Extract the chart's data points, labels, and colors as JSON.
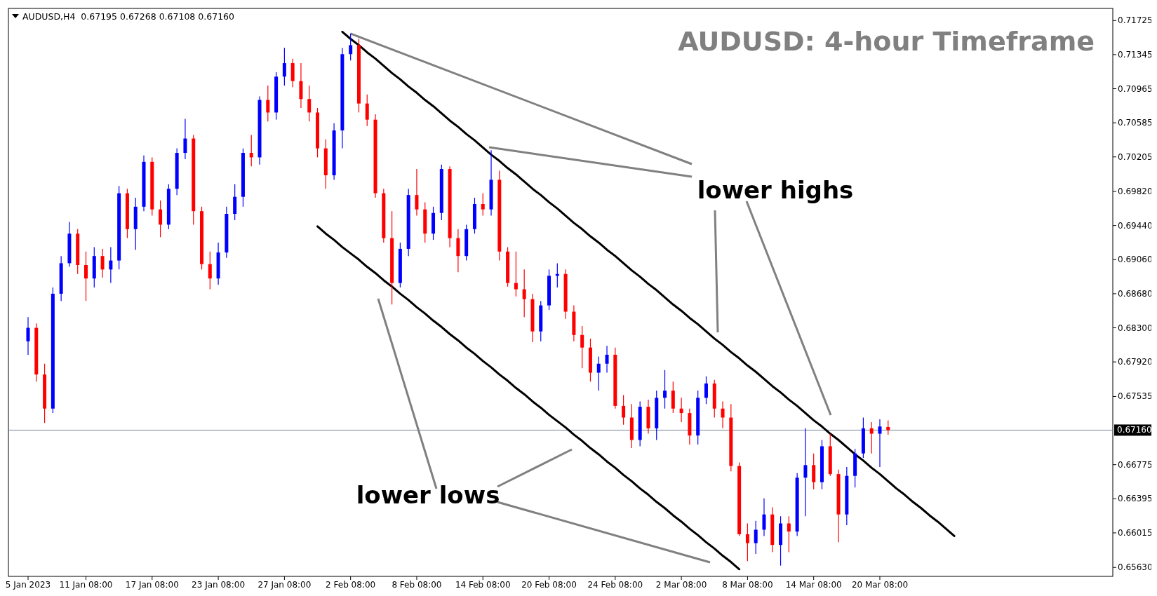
{
  "chart_data": {
    "type": "candlestick",
    "title": "AUDUSD: 4-hour Timeframe",
    "annotations": [
      "AUDUSD,H4  0.67195 0.67268 0.67108 0.67160",
      {
        "text": "lower highs",
        "x": "2 Feb 08:00",
        "y": 0.7158
      },
      "lower lows"
    ],
    "categories": [
      "5 Jan 2023",
      null,
      null,
      null,
      null,
      null,
      null,
      "11 Jan 08:00",
      null,
      null,
      null,
      null,
      null,
      null,
      null,
      "17 Jan 08:00",
      null,
      null,
      null,
      null,
      null,
      null,
      null,
      "23 Jan 08:00",
      null,
      null,
      null,
      null,
      null,
      null,
      null,
      "27 Jan 08:00",
      null,
      null,
      null,
      null,
      null,
      null,
      null,
      "2 Feb 08:00",
      null,
      null,
      null,
      null,
      null,
      null,
      null,
      "8 Feb 08:00",
      null,
      null,
      null,
      null,
      null,
      null,
      null,
      "14 Feb 08:00",
      null,
      null,
      null,
      null,
      null,
      null,
      null,
      "20 Feb 08:00",
      null,
      null,
      null,
      null,
      null,
      null,
      null,
      "24 Feb 08:00",
      null,
      null,
      null,
      null,
      null,
      null,
      null,
      "2 Mar 08:00",
      null,
      null,
      null,
      null,
      null,
      null,
      null,
      "8 Mar 08:00",
      null,
      null,
      null,
      null,
      null,
      null,
      null,
      "14 Mar 08:00",
      null,
      null,
      null,
      null,
      null,
      null,
      null,
      "20 Mar 08:00",
      null,
      null,
      null,
      null,
      null,
      null,
      null,
      null,
      null,
      null,
      null,
      null,
      null,
      null,
      null,
      null,
      null,
      null,
      null,
      null,
      null,
      null,
      null,
      null,
      null,
      null,
      null,
      null
    ],
    "ohlc": [
      [
        0.6815,
        0.6842,
        0.68,
        0.683
      ],
      [
        0.683,
        0.6835,
        0.677,
        0.6778
      ],
      [
        0.6778,
        0.679,
        0.6724,
        0.674
      ],
      [
        0.674,
        0.6875,
        0.6735,
        0.6868
      ],
      [
        0.6868,
        0.691,
        0.686,
        0.6902
      ],
      [
        0.6902,
        0.6948,
        0.6898,
        0.6935
      ],
      [
        0.6935,
        0.694,
        0.689,
        0.69
      ],
      [
        0.69,
        0.6915,
        0.686,
        0.6885
      ],
      [
        0.6885,
        0.692,
        0.6875,
        0.691
      ],
      [
        0.691,
        0.6918,
        0.6886,
        0.6895
      ],
      [
        0.6895,
        0.692,
        0.688,
        0.6905
      ],
      [
        0.6905,
        0.6988,
        0.6895,
        0.698
      ],
      [
        0.698,
        0.6985,
        0.693,
        0.694
      ],
      [
        0.694,
        0.6975,
        0.6917,
        0.6965
      ],
      [
        0.6965,
        0.7022,
        0.696,
        0.7015
      ],
      [
        0.7015,
        0.702,
        0.6955,
        0.6962
      ],
      [
        0.6962,
        0.6972,
        0.6931,
        0.6945
      ],
      [
        0.6945,
        0.699,
        0.694,
        0.6985
      ],
      [
        0.6985,
        0.703,
        0.6978,
        0.7025
      ],
      [
        0.7025,
        0.7063,
        0.7018,
        0.7041
      ],
      [
        0.7041,
        0.7045,
        0.6945,
        0.696
      ],
      [
        0.696,
        0.6965,
        0.6895,
        0.6901
      ],
      [
        0.6901,
        0.6915,
        0.6873,
        0.6885
      ],
      [
        0.6885,
        0.6925,
        0.6878,
        0.6914
      ],
      [
        0.6914,
        0.6965,
        0.6908,
        0.6957
      ],
      [
        0.6957,
        0.699,
        0.695,
        0.6976
      ],
      [
        0.6976,
        0.703,
        0.6965,
        0.7025
      ],
      [
        0.7025,
        0.7045,
        0.701,
        0.702
      ],
      [
        0.702,
        0.7088,
        0.7012,
        0.7084
      ],
      [
        0.7084,
        0.71,
        0.706,
        0.707
      ],
      [
        0.707,
        0.7115,
        0.7062,
        0.711
      ],
      [
        0.711,
        0.7142,
        0.71,
        0.7125
      ],
      [
        0.7125,
        0.713,
        0.7098,
        0.7105
      ],
      [
        0.7105,
        0.7125,
        0.7075,
        0.7085
      ],
      [
        0.7085,
        0.71,
        0.706,
        0.707
      ],
      [
        0.707,
        0.7075,
        0.702,
        0.703
      ],
      [
        0.703,
        0.704,
        0.6985,
        0.7
      ],
      [
        0.7,
        0.7058,
        0.6995,
        0.705
      ],
      [
        0.705,
        0.7142,
        0.703,
        0.7135
      ],
      [
        0.7135,
        0.7158,
        0.7128,
        0.7145
      ],
      [
        0.7145,
        0.7152,
        0.707,
        0.708
      ],
      [
        0.708,
        0.709,
        0.7055,
        0.7062
      ],
      [
        0.7062,
        0.7068,
        0.6975,
        0.698
      ],
      [
        0.698,
        0.6985,
        0.6925,
        0.693
      ],
      [
        0.693,
        0.696,
        0.6856,
        0.688
      ],
      [
        0.688,
        0.6925,
        0.6875,
        0.6918
      ],
      [
        0.6918,
        0.6985,
        0.691,
        0.6978
      ],
      [
        0.6978,
        0.7007,
        0.6955,
        0.6962
      ],
      [
        0.6962,
        0.697,
        0.6925,
        0.6935
      ],
      [
        0.6935,
        0.6965,
        0.6928,
        0.6958
      ],
      [
        0.6958,
        0.7012,
        0.695,
        0.7007
      ],
      [
        0.7007,
        0.701,
        0.692,
        0.693
      ],
      [
        0.693,
        0.694,
        0.6892,
        0.691
      ],
      [
        0.691,
        0.6945,
        0.6905,
        0.694
      ],
      [
        0.694,
        0.6975,
        0.6935,
        0.6968
      ],
      [
        0.6968,
        0.698,
        0.6955,
        0.6962
      ],
      [
        0.6962,
        0.7028,
        0.6955,
        0.6995
      ],
      [
        0.6995,
        0.7005,
        0.6905,
        0.6915
      ],
      [
        0.6915,
        0.692,
        0.6876,
        0.688
      ],
      [
        0.688,
        0.6915,
        0.6865,
        0.6873
      ],
      [
        0.6873,
        0.6895,
        0.6842,
        0.6862
      ],
      [
        0.6862,
        0.6868,
        0.6814,
        0.6826
      ],
      [
        0.6826,
        0.686,
        0.6815,
        0.6855
      ],
      [
        0.6855,
        0.6895,
        0.685,
        0.6888
      ],
      [
        0.6888,
        0.6902,
        0.6875,
        0.689
      ],
      [
        0.689,
        0.6895,
        0.684,
        0.6848
      ],
      [
        0.6848,
        0.6855,
        0.6815,
        0.6822
      ],
      [
        0.6822,
        0.6832,
        0.6785,
        0.6808
      ],
      [
        0.6808,
        0.6818,
        0.677,
        0.678
      ],
      [
        0.678,
        0.6798,
        0.676,
        0.679
      ],
      [
        0.679,
        0.681,
        0.678,
        0.68
      ],
      [
        0.68,
        0.6808,
        0.674,
        0.6743
      ],
      [
        0.6743,
        0.6755,
        0.6722,
        0.673
      ],
      [
        0.673,
        0.6745,
        0.6696,
        0.6705
      ],
      [
        0.6705,
        0.6748,
        0.6698,
        0.6742
      ],
      [
        0.6742,
        0.675,
        0.6712,
        0.6718
      ],
      [
        0.6718,
        0.676,
        0.6705,
        0.6752
      ],
      [
        0.6752,
        0.6783,
        0.674,
        0.676
      ],
      [
        0.676,
        0.677,
        0.6735,
        0.674
      ],
      [
        0.674,
        0.6752,
        0.6725,
        0.6735
      ],
      [
        0.6735,
        0.674,
        0.67,
        0.671
      ],
      [
        0.671,
        0.676,
        0.67,
        0.6752
      ],
      [
        0.6752,
        0.6776,
        0.6745,
        0.6768
      ],
      [
        0.6768,
        0.6772,
        0.673,
        0.674
      ],
      [
        0.674,
        0.6748,
        0.6718,
        0.673
      ],
      [
        0.673,
        0.6745,
        0.667,
        0.6676
      ],
      [
        0.6676,
        0.668,
        0.6598,
        0.66
      ],
      [
        0.66,
        0.6612,
        0.657,
        0.659
      ],
      [
        0.659,
        0.6615,
        0.6578,
        0.6605
      ],
      [
        0.6605,
        0.664,
        0.6598,
        0.6622
      ],
      [
        0.6622,
        0.663,
        0.658,
        0.6588
      ],
      [
        0.6588,
        0.662,
        0.6565,
        0.6612
      ],
      [
        0.6612,
        0.662,
        0.658,
        0.6603
      ],
      [
        0.6603,
        0.6668,
        0.6598,
        0.6663
      ],
      [
        0.6663,
        0.6718,
        0.662,
        0.6677
      ],
      [
        0.6677,
        0.669,
        0.665,
        0.6658
      ],
      [
        0.6658,
        0.6705,
        0.665,
        0.6698
      ],
      [
        0.6698,
        0.6712,
        0.6665,
        0.6667
      ],
      [
        0.6667,
        0.6672,
        0.6591,
        0.6622
      ],
      [
        0.6622,
        0.6675,
        0.661,
        0.6665
      ],
      [
        0.6665,
        0.6695,
        0.6652,
        0.669
      ],
      [
        0.669,
        0.673,
        0.6685,
        0.6718
      ],
      [
        0.6718,
        0.6725,
        0.669,
        0.6712
      ],
      [
        0.6712,
        0.6728,
        0.6675,
        0.672
      ],
      [
        0.67195,
        0.67268,
        0.67108,
        0.6716
      ],
      null,
      null,
      null,
      null,
      null,
      null,
      null,
      null,
      null,
      null,
      null,
      null,
      null,
      null,
      null,
      null,
      null,
      null,
      null,
      null,
      null,
      null,
      null,
      null,
      null,
      null,
      null
    ],
    "colors": [
      "#0000ff",
      "#ff0000",
      "#ff0000",
      "#0000ff",
      "#0000ff",
      "#0000ff",
      "#ff0000",
      "#ff0000",
      "#0000ff",
      "#ff0000",
      "#0000ff",
      "#0000ff",
      "#ff0000",
      "#0000ff",
      "#0000ff",
      "#ff0000",
      "#ff0000",
      "#0000ff",
      "#0000ff",
      "#0000ff",
      "#ff0000",
      "#ff0000",
      "#ff0000",
      "#0000ff",
      "#0000ff",
      "#0000ff",
      "#0000ff",
      "#ff0000",
      "#0000ff",
      "#ff0000",
      "#0000ff",
      "#0000ff",
      "#ff0000",
      "#ff0000",
      "#ff0000",
      "#ff0000",
      "#ff0000",
      "#0000ff",
      "#0000ff",
      "#0000ff",
      "#ff0000",
      "#ff0000",
      "#ff0000",
      "#ff0000",
      "#ff0000",
      "#0000ff",
      "#0000ff",
      "#ff0000",
      "#ff0000",
      "#0000ff",
      "#0000ff",
      "#ff0000",
      "#ff0000",
      "#0000ff",
      "#0000ff",
      "#ff0000",
      "#0000ff",
      "#ff0000",
      "#ff0000",
      "#ff0000",
      "#ff0000",
      "#ff0000",
      "#0000ff",
      "#0000ff",
      "#0000ff",
      "#ff0000",
      "#ff0000",
      "#ff0000",
      "#ff0000",
      "#0000ff",
      "#0000ff",
      "#ff0000",
      "#ff0000",
      "#ff0000",
      "#0000ff",
      "#ff0000",
      "#0000ff",
      "#0000ff",
      "#ff0000",
      "#ff0000",
      "#ff0000",
      "#0000ff",
      "#0000ff",
      "#ff0000",
      "#ff0000",
      "#ff0000",
      "#ff0000",
      "#ff0000",
      "#0000ff",
      "#0000ff",
      "#ff0000",
      "#0000ff",
      "#ff0000",
      "#0000ff",
      "#0000ff",
      "#ff0000",
      "#0000ff",
      "#ff0000",
      "#ff0000",
      "#0000ff",
      "#0000ff",
      "#0000ff",
      "#ff0000",
      "#0000ff",
      "#ff0000",
      null,
      null,
      null,
      null,
      null,
      null,
      null,
      null,
      null,
      null,
      null,
      null,
      null,
      null,
      null,
      null,
      null,
      null,
      null,
      null,
      null,
      null,
      null,
      null,
      null,
      null,
      null
    ],
    "series": [
      {
        "type": "line",
        "color": "#000000",
        "values": [
          null,
          null,
          null,
          null,
          null,
          null,
          null,
          null,
          null,
          null,
          null,
          null,
          null,
          null,
          null,
          null,
          null,
          null,
          null,
          null,
          null,
          null,
          null,
          null,
          null,
          null,
          null,
          null,
          null,
          null,
          null,
          null,
          null,
          null,
          null,
          null,
          null,
          null,
          0.716,
          0.7152,
          0.7145,
          0.7137,
          0.713,
          0.7122,
          0.7114,
          0.7107,
          0.7099,
          0.7092,
          0.7084,
          0.7077,
          0.7069,
          0.7061,
          0.7054,
          0.7046,
          0.7039,
          0.7031,
          0.7023,
          0.7016,
          0.7008,
          0.7001,
          0.6993,
          0.6985,
          0.6978,
          0.697,
          0.6963,
          0.6955,
          0.6947,
          0.694,
          0.6932,
          0.6925,
          0.6917,
          0.691,
          0.6902,
          0.6894,
          0.6887,
          0.6879,
          0.6872,
          0.6864,
          0.6856,
          0.6849,
          0.6841,
          0.6834,
          0.6826,
          0.6818,
          0.6811,
          0.6803,
          0.6796,
          0.6788,
          0.6781,
          0.6773,
          0.6765,
          0.6758,
          0.675,
          0.6743,
          0.6735,
          0.6727,
          0.672,
          0.6712,
          0.6705,
          0.6697,
          0.6689,
          0.6682,
          0.6674,
          0.6667,
          0.6659,
          0.6651,
          0.6644,
          0.6636,
          0.6629,
          0.6621,
          0.6614,
          0.6606,
          0.6598,
          null,
          null,
          null,
          null,
          null,
          null,
          null,
          null,
          null,
          null,
          null,
          null,
          null,
          null,
          null,
          null,
          null,
          null,
          null
        ]
      },
      {
        "type": "line",
        "color": "#000000",
        "values": [
          null,
          null,
          null,
          null,
          null,
          null,
          null,
          null,
          null,
          null,
          null,
          null,
          null,
          null,
          null,
          null,
          null,
          null,
          null,
          null,
          null,
          null,
          null,
          null,
          null,
          null,
          null,
          null,
          null,
          null,
          null,
          null,
          null,
          null,
          null,
          0.6943,
          0.6935,
          0.6928,
          0.692,
          0.6913,
          0.6906,
          0.6898,
          0.6891,
          0.6883,
          0.6876,
          0.6868,
          0.6861,
          0.6853,
          0.6846,
          0.6838,
          0.6831,
          0.6823,
          0.6816,
          0.6808,
          0.6801,
          0.6793,
          0.6786,
          0.6778,
          0.6771,
          0.6763,
          0.6756,
          0.6748,
          0.6741,
          0.6733,
          0.6726,
          0.6719,
          0.6711,
          0.6704,
          0.6696,
          0.6689,
          0.6681,
          0.6674,
          0.6666,
          0.6659,
          0.6651,
          0.6644,
          0.6636,
          0.6629,
          0.6621,
          0.6614,
          0.6606,
          0.6599,
          0.6591,
          0.6584,
          0.6576,
          0.6569,
          0.6561,
          null,
          null,
          null,
          null,
          null,
          null,
          null,
          null,
          null,
          null,
          null,
          null,
          null,
          null,
          null,
          null,
          null,
          null,
          null,
          null,
          null,
          null,
          null,
          null,
          null,
          null,
          null,
          null,
          null,
          null,
          null,
          null,
          null,
          null,
          null,
          null,
          null,
          null,
          null,
          null,
          null,
          null,
          null,
          null,
          null
        ]
      }
    ],
    "ylim": [
      0.6553,
      0.7186
    ],
    "yticks": [
      0.71725,
      0.71345,
      0.70965,
      0.70585,
      0.70205,
      {
        "value": 0.6982,
        "label": "0.69820"
      },
      {
        "value": 0.6944,
        "label": "0.69440"
      },
      {
        "value": 0.6906,
        "label": "0.69060"
      },
      {
        "value": 0.6868,
        "label": "0.68680"
      },
      {
        "value": 0.683,
        "label": "0.68300"
      },
      {
        "value": 0.6792,
        "label": "0.67920"
      },
      0.67535,
      0.66775,
      0.66395,
      0.66015,
      {
        "value": 0.6563,
        "label": "0.65630"
      }
    ],
    "ref_lines": [
      {
        "axis": "y",
        "value": 0.6716,
        "label": "0.67160",
        "color": "#778899"
      }
    ]
  }
}
